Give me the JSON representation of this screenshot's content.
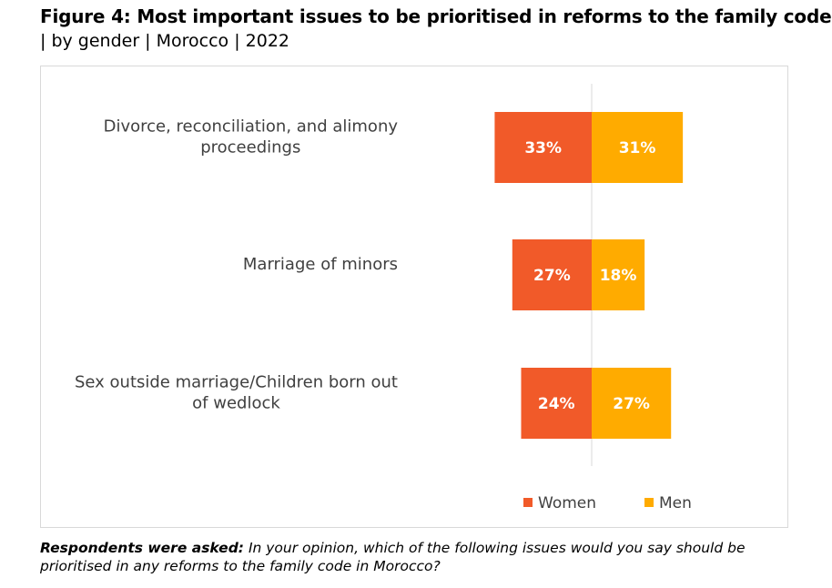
{
  "header": {
    "title": "Figure 4: Most important issues to be prioritised in reforms to the family code",
    "subtitle": "| by gender | Morocco | 2022"
  },
  "note": {
    "prefix": "Respondents were asked:",
    "text": "In your opinion, which of the following issues would you say should be prioritised in any reforms to the family code in Morocco?"
  },
  "colors": {
    "women": "#f15a29",
    "men": "#ffab00",
    "axis": "#d9d9d9"
  },
  "chart_data": {
    "type": "bar",
    "orientation": "horizontal-diverging",
    "title": "Most important issues to be prioritised in reforms to the family code",
    "categories": [
      [
        "Divorce, reconciliation, and alimony",
        "proceedings"
      ],
      [
        "Marriage of minors"
      ],
      [
        "Sex outside marriage/Children born out",
        "of wedlock"
      ]
    ],
    "series": [
      {
        "name": "Women",
        "values": [
          33,
          27,
          24
        ],
        "labels": [
          "33%",
          "27%",
          "24%"
        ]
      },
      {
        "name": "Men",
        "values": [
          31,
          18,
          27
        ],
        "labels": [
          "31%",
          "18%",
          "27%"
        ]
      }
    ],
    "unit": "%",
    "legend_position": "bottom-right"
  }
}
